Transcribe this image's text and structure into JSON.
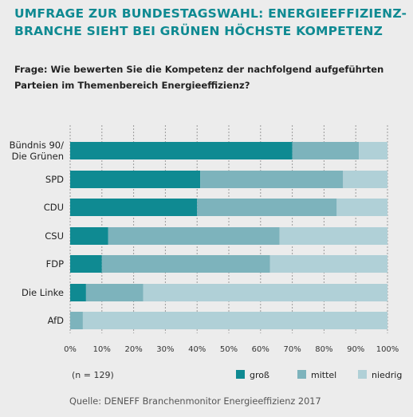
{
  "title": "UMFRAGE ZUR BUNDESTAGSWAHL: ENERGIEEFFIZIENZ-BRANCHE SIEHT BEI GRÜNEN HÖCHSTE KOMPETENZ",
  "question": "Frage: Wie bewerten Sie die Kompetenz der nachfolgend aufgeführten Parteien im Themenbereich Energieeffizienz?",
  "sample_note": "(n = 129)",
  "source": "Quelle: DENEFF Branchenmonitor Energieeffizienz 2017",
  "colors": {
    "gross": "#0f8a92",
    "mittel": "#7db3bc",
    "niedrig": "#b0d0d7",
    "grid": "#9a9a9a"
  },
  "chart_data": {
    "type": "bar",
    "orientation": "horizontal",
    "stacked": true,
    "categories": [
      "Bündnis 90/\nDie Grünen",
      "SPD",
      "CDU",
      "CSU",
      "FDP",
      "Die Linke",
      "AfD"
    ],
    "series": [
      {
        "name": "groß",
        "values": [
          70,
          41,
          40,
          12,
          10,
          5,
          0
        ]
      },
      {
        "name": "mittel",
        "values": [
          21,
          45,
          44,
          54,
          53,
          18,
          4
        ]
      },
      {
        "name": "niedrig",
        "values": [
          9,
          14,
          16,
          34,
          37,
          77,
          96
        ]
      }
    ],
    "xlim": [
      0,
      100
    ],
    "xticks": [
      "0%",
      "10%",
      "20%",
      "30%",
      "40%",
      "50%",
      "60%",
      "70%",
      "80%",
      "90%",
      "100%"
    ],
    "grid": true,
    "legend": "bottom-right"
  }
}
